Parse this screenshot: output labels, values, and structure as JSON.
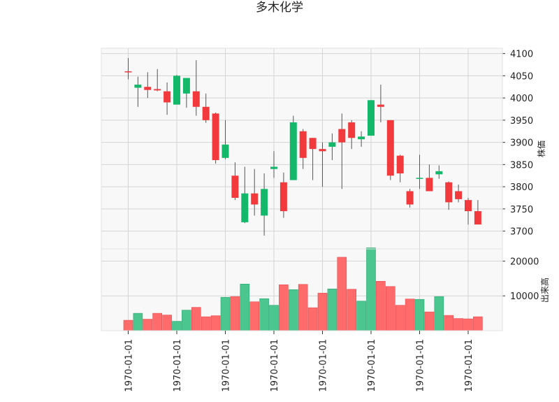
{
  "chart_data": {
    "type": "candlestick",
    "title": "多木化学",
    "colors": {
      "up": "#13b86b",
      "down": "#f23a3d",
      "volume_up": "#4cc68f",
      "volume_down": "#ff6a6b",
      "background": "#f8f8f8",
      "grid": "#d4d4d4"
    },
    "price_axis": {
      "label": "株価",
      "range": [
        3660,
        4112
      ],
      "ticks": [
        3700,
        3750,
        3800,
        3850,
        3900,
        3950,
        4000,
        4050,
        4100
      ]
    },
    "volume_axis": {
      "label": "出来高",
      "range": [
        0,
        23500
      ],
      "ticks": [
        10000,
        20000
      ]
    },
    "x_tick_labels": [
      "1970-01-01",
      "1970-01-01",
      "1970-01-01",
      "1970-01-01",
      "1970-01-01",
      "1970-01-01",
      "1970-01-01",
      "1970-01-01"
    ],
    "x_tick_positions": [
      0,
      5,
      10,
      15,
      20,
      25,
      30,
      35
    ],
    "candles": [
      {
        "open": 4060,
        "high": 4090,
        "low": 4042,
        "close": 4058,
        "volume": 3000
      },
      {
        "open": 4023,
        "high": 4048,
        "low": 3980,
        "close": 4030,
        "volume": 5000
      },
      {
        "open": 4025,
        "high": 4058,
        "low": 4000,
        "close": 4018,
        "volume": 3300
      },
      {
        "open": 4020,
        "high": 4065,
        "low": 4015,
        "close": 4017,
        "volume": 5000
      },
      {
        "open": 4015,
        "high": 4035,
        "low": 3962,
        "close": 3990,
        "volume": 4500
      },
      {
        "open": 3985,
        "high": 4052,
        "low": 3985,
        "close": 4050,
        "volume": 2700
      },
      {
        "open": 4010,
        "high": 4045,
        "low": 3978,
        "close": 4045,
        "volume": 5900
      },
      {
        "open": 4015,
        "high": 4085,
        "low": 3960,
        "close": 3980,
        "volume": 6700
      },
      {
        "open": 3980,
        "high": 4010,
        "low": 3944,
        "close": 3950,
        "volume": 4000
      },
      {
        "open": 3965,
        "high": 3967,
        "low": 3852,
        "close": 3860,
        "volume": 4300
      },
      {
        "open": 3865,
        "high": 3950,
        "low": 3862,
        "close": 3895,
        "volume": 9600
      },
      {
        "open": 3825,
        "high": 3855,
        "low": 3770,
        "close": 3775,
        "volume": 9800
      },
      {
        "open": 3720,
        "high": 3845,
        "low": 3718,
        "close": 3785,
        "volume": 13400
      },
      {
        "open": 3785,
        "high": 3840,
        "low": 3735,
        "close": 3760,
        "volume": 8300
      },
      {
        "open": 3735,
        "high": 3830,
        "low": 3690,
        "close": 3795,
        "volume": 9200
      },
      {
        "open": 3840,
        "high": 3880,
        "low": 3820,
        "close": 3845,
        "volume": 7300
      },
      {
        "open": 3810,
        "high": 3832,
        "low": 3730,
        "close": 3745,
        "volume": 13200
      },
      {
        "open": 3815,
        "high": 3960,
        "low": 3815,
        "close": 3945,
        "volume": 11800
      },
      {
        "open": 3925,
        "high": 3930,
        "low": 3840,
        "close": 3865,
        "volume": 13300
      },
      {
        "open": 3910,
        "high": 3910,
        "low": 3815,
        "close": 3885,
        "volume": 6600
      },
      {
        "open": 3885,
        "high": 3900,
        "low": 3800,
        "close": 3880,
        "volume": 10800
      },
      {
        "open": 3890,
        "high": 3920,
        "low": 3860,
        "close": 3900,
        "volume": 12000
      },
      {
        "open": 3930,
        "high": 3965,
        "low": 3795,
        "close": 3900,
        "volume": 21100
      },
      {
        "open": 3945,
        "high": 3950,
        "low": 3885,
        "close": 3910,
        "volume": 11900
      },
      {
        "open": 3907,
        "high": 3925,
        "low": 3890,
        "close": 3913,
        "volume": 8500
      },
      {
        "open": 3915,
        "high": 3995,
        "low": 3915,
        "close": 3995,
        "volume": 23800
      },
      {
        "open": 3985,
        "high": 4030,
        "low": 3945,
        "close": 3980,
        "volume": 14200
      },
      {
        "open": 3950,
        "high": 3950,
        "low": 3815,
        "close": 3825,
        "volume": 12700
      },
      {
        "open": 3870,
        "high": 3872,
        "low": 3810,
        "close": 3830,
        "volume": 7300
      },
      {
        "open": 3790,
        "high": 3795,
        "low": 3753,
        "close": 3760,
        "volume": 9100
      },
      {
        "open": 3820,
        "high": 3872,
        "low": 3795,
        "close": 3820,
        "volume": 9000
      },
      {
        "open": 3820,
        "high": 3850,
        "low": 3790,
        "close": 3790,
        "volume": 5400
      },
      {
        "open": 3828,
        "high": 3848,
        "low": 3818,
        "close": 3835,
        "volume": 9800
      },
      {
        "open": 3810,
        "high": 3812,
        "low": 3748,
        "close": 3765,
        "volume": 4400
      },
      {
        "open": 3790,
        "high": 3805,
        "low": 3765,
        "close": 3772,
        "volume": 3500
      },
      {
        "open": 3770,
        "high": 3775,
        "low": 3715,
        "close": 3745,
        "volume": 3400
      },
      {
        "open": 3745,
        "high": 3770,
        "low": 3715,
        "close": 3715,
        "volume": 4000
      }
    ]
  }
}
